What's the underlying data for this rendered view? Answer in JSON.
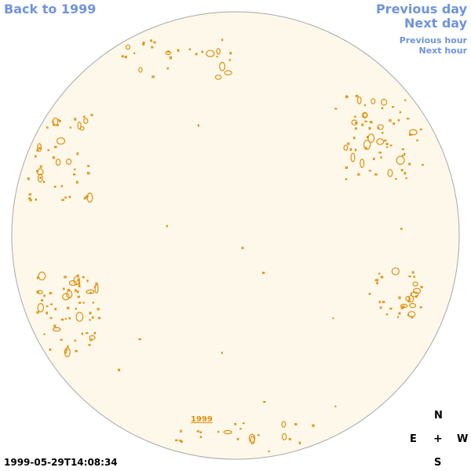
{
  "nav": {
    "back_label": "Back to 1999",
    "previous_day_label": "Previous day",
    "next_day_label": "Next day",
    "previous_hour_label": "Previous hour",
    "next_hour_label": "Next hour"
  },
  "map": {
    "year_label": "1999",
    "timestamp": "1999-05-29T14:08:34",
    "colors": {
      "disk_fill": "#fdf8ea",
      "disk_border": "#a8a8a8",
      "contours": "#e0900f",
      "links": "#6f93dd"
    }
  },
  "compass": {
    "north": "N",
    "south": "S",
    "east": "E",
    "west": "W",
    "center": "+"
  }
}
